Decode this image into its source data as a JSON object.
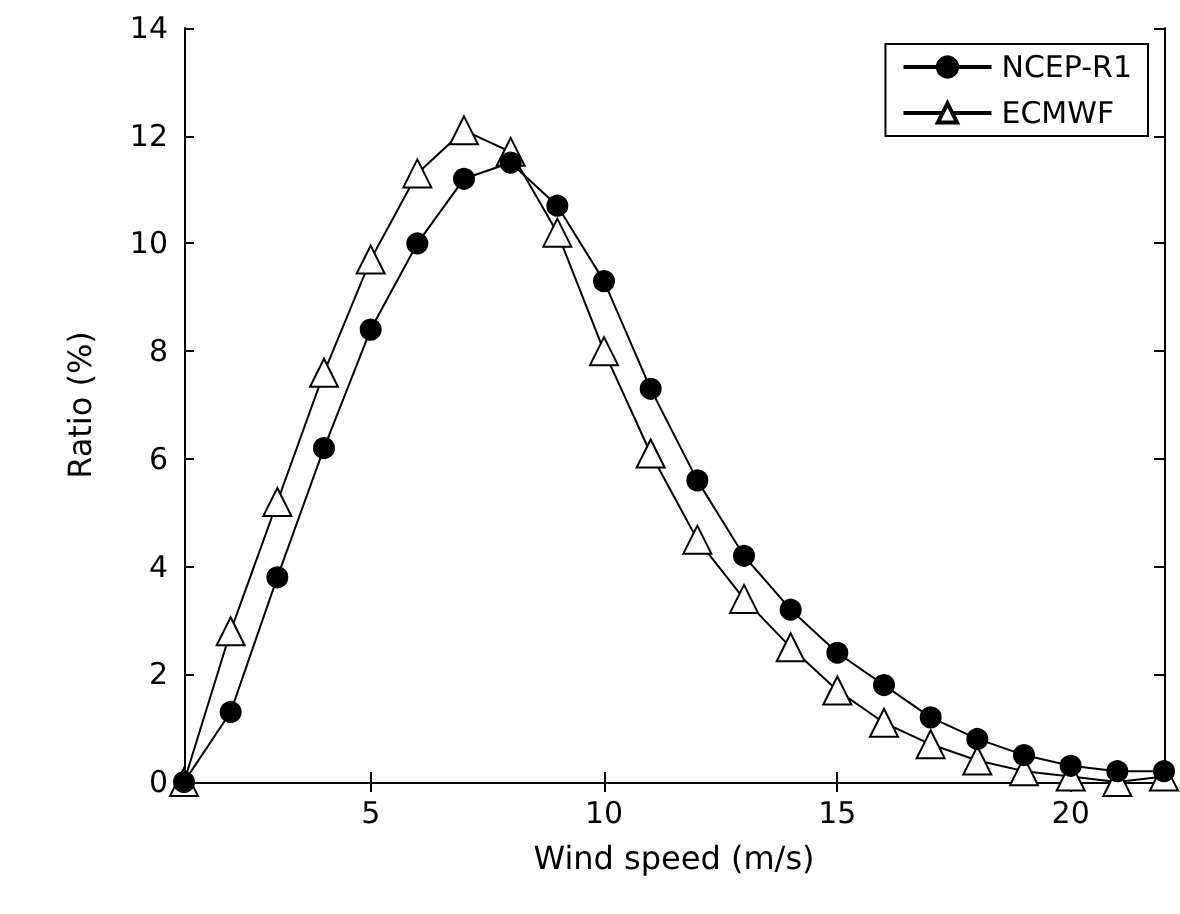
{
  "chart_data": {
    "type": "line",
    "xlabel": "Wind speed (m/s)",
    "ylabel": "Ratio (%)",
    "x": [
      1,
      2,
      3,
      4,
      5,
      6,
      7,
      8,
      9,
      10,
      11,
      12,
      13,
      14,
      15,
      16,
      17,
      18,
      19,
      20,
      21,
      22
    ],
    "series": [
      {
        "name": "NCEP-R1",
        "color": "#000000",
        "marker": "circle",
        "values": [
          0,
          1.3,
          3.8,
          6.2,
          8.4,
          10.0,
          11.2,
          11.5,
          10.7,
          9.3,
          7.3,
          5.6,
          4.2,
          3.2,
          2.4,
          1.8,
          1.2,
          0.8,
          0.5,
          0.3,
          0.2,
          0.2
        ]
      },
      {
        "name": "ECMWF",
        "color": "#000000",
        "marker": "triangle",
        "values": [
          0,
          2.8,
          5.2,
          7.6,
          9.7,
          11.3,
          12.1,
          11.7,
          10.2,
          8.0,
          6.1,
          4.5,
          3.4,
          2.5,
          1.7,
          1.1,
          0.7,
          0.4,
          0.2,
          0.1,
          0.0,
          0.1
        ]
      }
    ],
    "xlim": [
      1,
      22
    ],
    "xticks": [
      5,
      10,
      15,
      20
    ],
    "ylim": [
      0,
      14
    ],
    "yticks": [
      0,
      2,
      4,
      6,
      8,
      10,
      12,
      14
    ],
    "grid": false,
    "legend": "top right",
    "line_style": "solid"
  }
}
